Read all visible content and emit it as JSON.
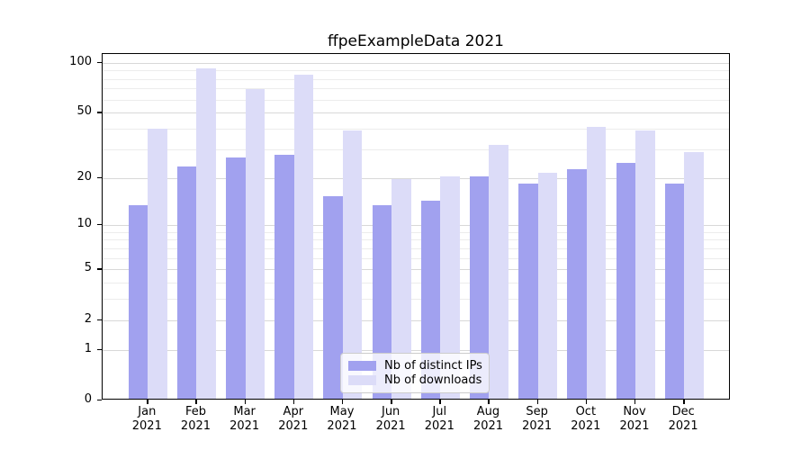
{
  "chart_data": {
    "type": "bar",
    "title": "ffpeExampleData 2021",
    "categories": [
      "Jan",
      "Feb",
      "Mar",
      "Apr",
      "May",
      "Jun",
      "Jul",
      "Aug",
      "Sep",
      "Oct",
      "Nov",
      "Dec"
    ],
    "x_tick_second_line": "2021",
    "series": [
      {
        "name": "Nb of distinct IPs",
        "color": "#a1a1ef",
        "values": [
          13,
          23,
          26,
          27,
          15,
          13,
          14,
          20,
          18,
          22,
          24,
          18
        ]
      },
      {
        "name": "Nb of downloads",
        "color": "#dcdcf8",
        "values": [
          39,
          90,
          68,
          83,
          38,
          19,
          20,
          31,
          21,
          40,
          38,
          28
        ]
      }
    ],
    "yscale": "log1p",
    "ylim": [
      0,
      113
    ],
    "y_ticks": [
      0,
      1,
      2,
      5,
      10,
      20,
      50,
      100
    ],
    "y_minor_gridlines": [
      3,
      4,
      6,
      7,
      8,
      9,
      30,
      40,
      60,
      70,
      80,
      90
    ],
    "grid": "horizontal",
    "legend_position": "bottom-center",
    "colors": {
      "grid_major": "#d8d8d8",
      "grid_minor": "#ececec",
      "axis": "#000000",
      "legend_border": "#cccccc"
    }
  }
}
